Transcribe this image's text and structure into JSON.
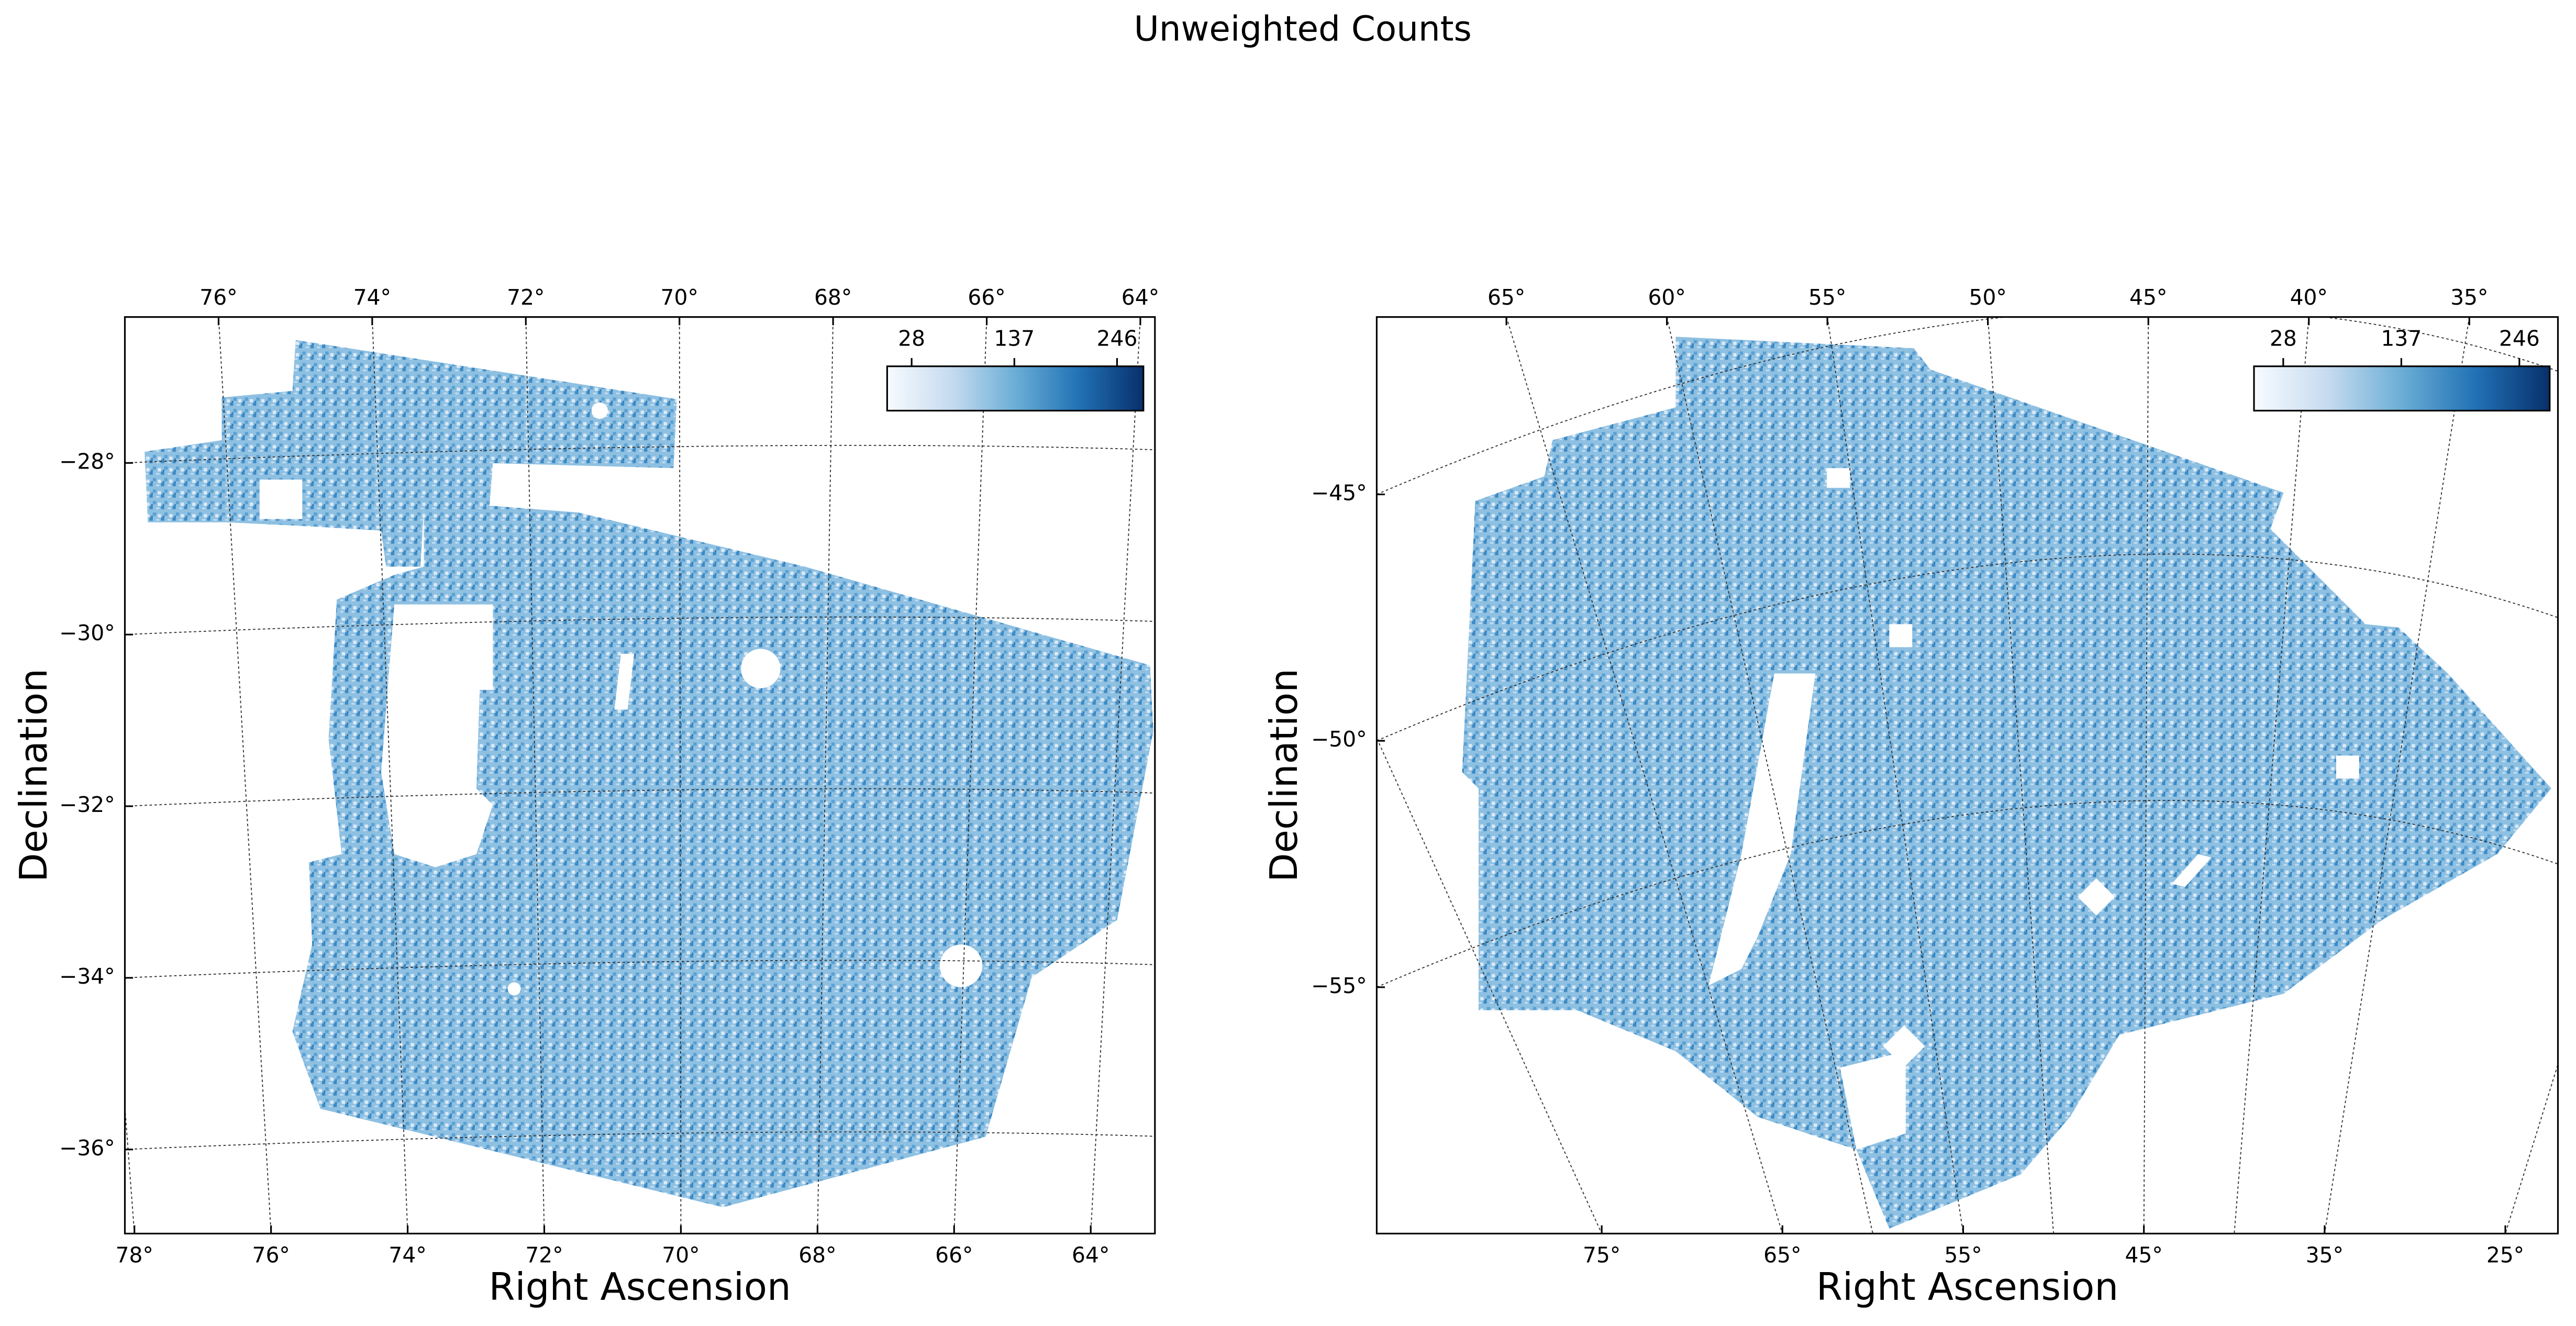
{
  "title": "Unweighted Counts",
  "chart_data": [
    {
      "type": "map",
      "xlabel": "Right Ascension",
      "ylabel": "Declination",
      "grid": true,
      "color": "#4a98c9",
      "xticks_top": [
        {
          "value": 76,
          "label": "76°"
        },
        {
          "value": 74,
          "label": "74°"
        },
        {
          "value": 72,
          "label": "72°"
        },
        {
          "value": 70,
          "label": "70°"
        },
        {
          "value": 68,
          "label": "68°"
        },
        {
          "value": 66,
          "label": "66°"
        },
        {
          "value": 64,
          "label": "64°"
        }
      ],
      "xlim_top": [
        77.22,
        63.81
      ],
      "xticks": [
        {
          "value": 78,
          "label": "78°"
        },
        {
          "value": 76,
          "label": "76°"
        },
        {
          "value": 74,
          "label": "74°"
        },
        {
          "value": 72,
          "label": "72°"
        },
        {
          "value": 70,
          "label": "70°"
        },
        {
          "value": 68,
          "label": "68°"
        },
        {
          "value": 66,
          "label": "66°"
        },
        {
          "value": 64,
          "label": "64°"
        }
      ],
      "xlim": [
        78.14,
        63.06
      ],
      "yticks": [
        {
          "value": -28,
          "label": "−28°"
        },
        {
          "value": -30,
          "label": "−30°"
        },
        {
          "value": -32,
          "label": "−32°"
        },
        {
          "value": -34,
          "label": "−34°"
        },
        {
          "value": -36,
          "label": "−36°"
        }
      ],
      "ylim": [
        -36.98,
        -26.3
      ],
      "colorbar": {
        "ticks": [
          28,
          137,
          246
        ],
        "lim": [
          2,
          274
        ],
        "colors": [
          "#f7fbff",
          "#c6dbef",
          "#6baed6",
          "#2171b5",
          "#08306b"
        ]
      }
    },
    {
      "type": "map",
      "xlabel": "Right Ascension",
      "ylabel": "Declination",
      "grid": true,
      "color": "#4a98c9",
      "xticks_top": [
        {
          "value": 65,
          "label": "65°"
        },
        {
          "value": 60,
          "label": "60°"
        },
        {
          "value": 55,
          "label": "55°"
        },
        {
          "value": 50,
          "label": "50°"
        },
        {
          "value": 45,
          "label": "45°"
        },
        {
          "value": 40,
          "label": "40°"
        },
        {
          "value": 35,
          "label": "35°"
        }
      ],
      "xlim_top": [
        69.04,
        32.24
      ],
      "xticks": [
        {
          "value": 75,
          "label": "75°"
        },
        {
          "value": 65,
          "label": "65°"
        },
        {
          "value": 55,
          "label": "55°"
        },
        {
          "value": 45,
          "label": "45°"
        },
        {
          "value": 35,
          "label": "35°"
        },
        {
          "value": 25,
          "label": "25°"
        }
      ],
      "xlim": [
        87.45,
        22.09
      ],
      "yticks": [
        {
          "value": -45,
          "label": "−45°"
        },
        {
          "value": -50,
          "label": "−50°"
        },
        {
          "value": -55,
          "label": "−55°"
        }
      ],
      "ylim": [
        -60,
        -41.4
      ],
      "colorbar": {
        "ticks": [
          28,
          137,
          246
        ],
        "lim": [
          1,
          274
        ],
        "colors": [
          "#f7fbff",
          "#c6dbef",
          "#6baed6",
          "#2171b5",
          "#08306b"
        ]
      }
    }
  ]
}
